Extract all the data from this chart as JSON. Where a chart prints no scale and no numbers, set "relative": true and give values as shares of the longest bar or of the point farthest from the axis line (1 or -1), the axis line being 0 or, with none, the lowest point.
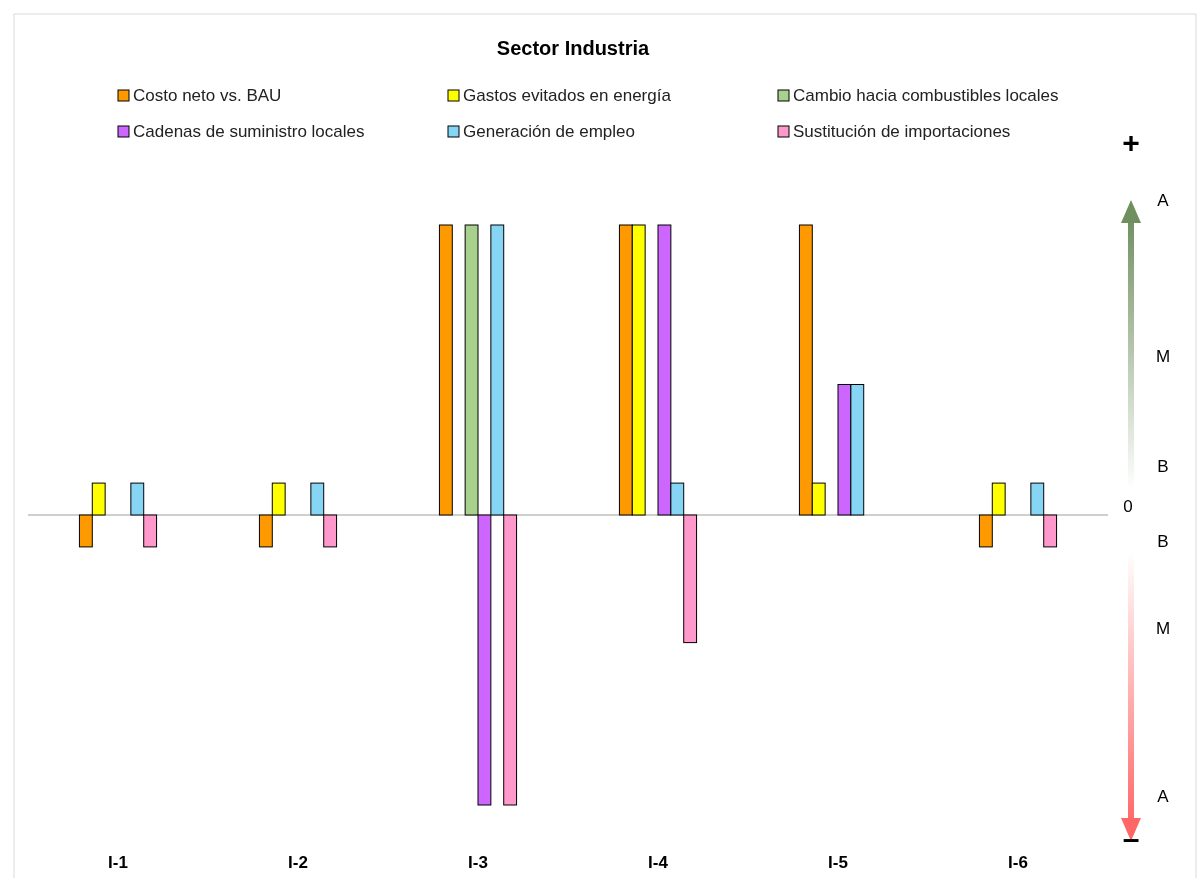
{
  "chart_data": {
    "type": "bar",
    "title": "Sector Industria",
    "relative": true,
    "legend": "top",
    "categories": [
      "I-1",
      "I-2",
      "I-3",
      "I-4",
      "I-5",
      "I-6"
    ],
    "series": [
      {
        "name": "Costo neto vs. BAU",
        "color": "#ff9900",
        "values": [
          -0.11,
          -0.11,
          1,
          1,
          1,
          -0.11
        ]
      },
      {
        "name": "Gastos evitados en energía",
        "color": "#ffff00",
        "values": [
          0.11,
          0.11,
          null,
          1,
          0.11,
          0.11
        ]
      },
      {
        "name": "Cambio hacia combustibles locales",
        "color": "#a9d18e",
        "values": [
          null,
          null,
          1,
          null,
          null,
          null
        ]
      },
      {
        "name": "Cadenas de suministro locales",
        "color": "#cc66ff",
        "values": [
          null,
          null,
          -1,
          1,
          0.45,
          null
        ]
      },
      {
        "name": "Generación de empleo",
        "color": "#87d5f5",
        "values": [
          0.11,
          0.11,
          1,
          0.11,
          0.45,
          0.11
        ]
      },
      {
        "name": "Sustitución de importaciones",
        "color": "#ff99cc",
        "values": [
          -0.11,
          -0.11,
          -1,
          -0.44,
          null,
          -0.11
        ]
      }
    ],
    "annotations": [
      "+",
      "A",
      "M",
      "B",
      "0",
      "B",
      "M",
      "A",
      "–"
    ]
  }
}
